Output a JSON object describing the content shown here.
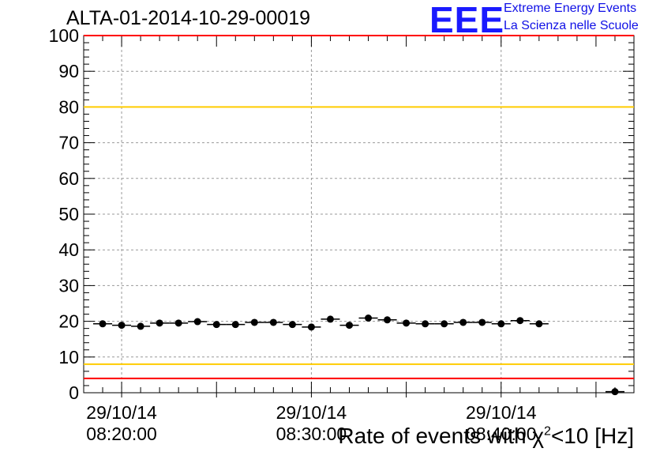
{
  "header": {
    "title": "ALTA-01-2014-10-29-00019",
    "logo_mark": "EEE",
    "logo_line1": "Extreme Energy Events",
    "logo_line2": "La Scienza nelle Scuole"
  },
  "colors": {
    "logo": "#1a1aff",
    "red_limit": "#ff0000",
    "yellow_limit": "#ffcc00",
    "grid": "#999999",
    "marker": "#000000"
  },
  "chart_data": {
    "type": "scatter",
    "title": "ALTA-01-2014-10-29-00019",
    "xlabel_prefix": "Rate of events with χ",
    "xlabel_sup": "2",
    "xlabel_suffix": "<10 [Hz]",
    "ylabel": "",
    "ylim": [
      0,
      100
    ],
    "y_ticks": [
      0,
      10,
      20,
      30,
      40,
      50,
      60,
      70,
      80,
      90,
      100
    ],
    "grid": true,
    "x_unit": "minute index (0 = 08:18:00 on 29/10/14)",
    "xlim": [
      0,
      29
    ],
    "x_tick_labels": [
      {
        "at": 2,
        "date": "29/10/14",
        "time": "08:20:00"
      },
      {
        "at": 12,
        "date": "29/10/14",
        "time": "08:30:00"
      },
      {
        "at": 22,
        "date": "29/10/14",
        "time": "08:40:00"
      }
    ],
    "horizontal_lines": [
      {
        "y": 100,
        "color": "red"
      },
      {
        "y": 80,
        "color": "yellow"
      },
      {
        "y": 8,
        "color": "yellow"
      },
      {
        "y": 4,
        "color": "red"
      }
    ],
    "series": [
      {
        "x": [
          1,
          2,
          3,
          4,
          5,
          6,
          7,
          8,
          9,
          10,
          11,
          12,
          13,
          14,
          15,
          16,
          17,
          18,
          19,
          20,
          21,
          22,
          23,
          24,
          25,
          26,
          27,
          28
        ],
        "values": [
          19.3,
          18.9,
          18.6,
          19.5,
          19.5,
          19.9,
          19.1,
          19.1,
          19.7,
          19.7,
          19.1,
          18.4,
          20.6,
          18.9,
          20.9,
          20.4,
          19.5,
          19.3,
          19.3,
          19.7,
          19.7,
          19.3,
          20.2,
          19.3,
          null,
          null,
          null,
          0.3
        ],
        "x_errors": 0.5
      }
    ]
  }
}
